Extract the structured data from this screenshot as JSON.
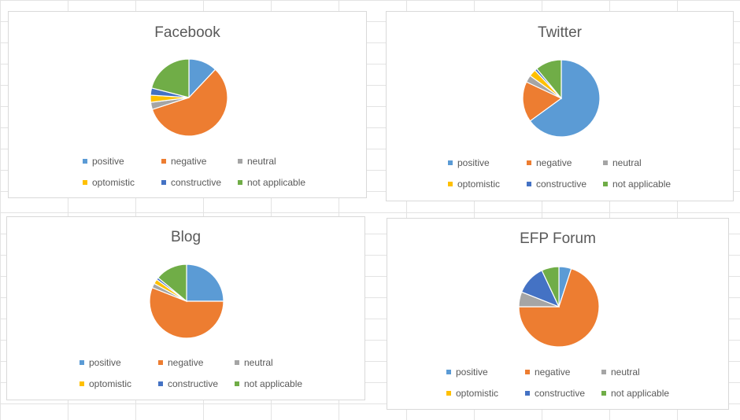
{
  "chart_data": [
    {
      "type": "pie",
      "title": "Facebook",
      "categories": [
        "positive",
        "negative",
        "neutral",
        "optomistic",
        "constructive",
        "not applicable"
      ],
      "values": [
        12,
        58,
        3,
        3,
        3,
        21
      ],
      "colors": [
        "#5B9BD5",
        "#ED7D31",
        "#A5A5A5",
        "#FFC000",
        "#4472C4",
        "#70AD47"
      ],
      "legend": "bottom"
    },
    {
      "type": "pie",
      "title": "Twitter",
      "categories": [
        "positive",
        "negative",
        "neutral",
        "optomistic",
        "constructive",
        "not applicable"
      ],
      "values": [
        65,
        17,
        3,
        3,
        1,
        11
      ],
      "colors": [
        "#5B9BD5",
        "#ED7D31",
        "#A5A5A5",
        "#FFC000",
        "#4472C4",
        "#70AD47"
      ],
      "legend": "bottom"
    },
    {
      "type": "pie",
      "title": "Blog",
      "categories": [
        "positive",
        "negative",
        "neutral",
        "optomistic",
        "constructive",
        "not applicable"
      ],
      "values": [
        25,
        56,
        2,
        2,
        1,
        14
      ],
      "colors": [
        "#5B9BD5",
        "#ED7D31",
        "#A5A5A5",
        "#FFC000",
        "#4472C4",
        "#70AD47"
      ],
      "legend": "bottom"
    },
    {
      "type": "pie",
      "title": "EFP Forum",
      "categories": [
        "positive",
        "negative",
        "neutral",
        "optomistic",
        "constructive",
        "not applicable"
      ],
      "values": [
        5,
        70,
        6,
        0,
        12,
        7
      ],
      "colors": [
        "#5B9BD5",
        "#ED7D31",
        "#A5A5A5",
        "#FFC000",
        "#4472C4",
        "#70AD47"
      ],
      "legend": "bottom"
    }
  ]
}
